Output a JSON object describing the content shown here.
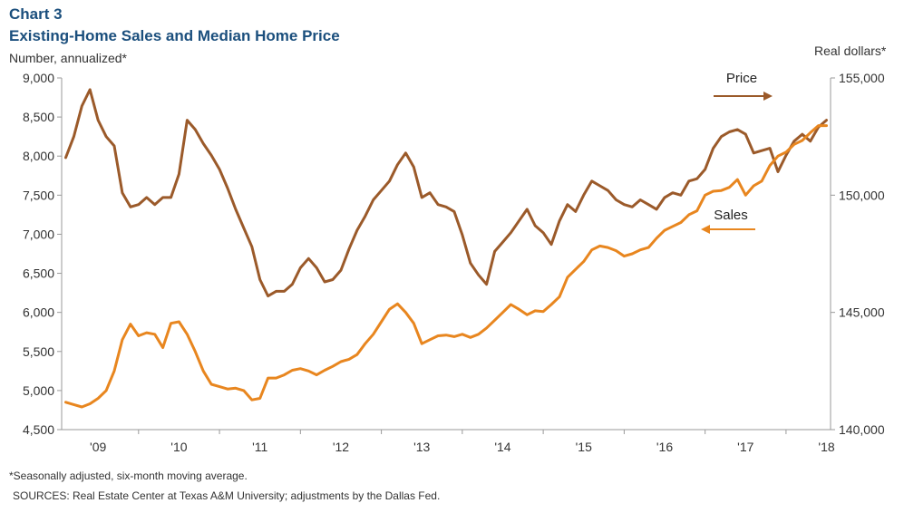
{
  "header": {
    "chart_number": "Chart 3",
    "title": "Existing-Home Sales and Median Home Price",
    "left_unit": "Number, annualized*",
    "right_unit": "Real dollars*"
  },
  "footer": {
    "note": "*Seasonally adjusted, six-month moving average.",
    "source": "SOURCES: Real Estate Center at Texas A&M University; adjustments by the Dallas Fed."
  },
  "colors": {
    "price": "#9b5a2a",
    "sales": "#e8861f",
    "axis": "#999999"
  },
  "chart_data": {
    "type": "line",
    "title": "Existing-Home Sales and Median Home Price",
    "x": [
      2008.6,
      2008.7,
      2008.8,
      2008.9,
      2009.0,
      2009.1,
      2009.2,
      2009.3,
      2009.4,
      2009.5,
      2009.6,
      2009.7,
      2009.8,
      2009.9,
      2010.0,
      2010.1,
      2010.2,
      2010.3,
      2010.4,
      2010.5,
      2010.6,
      2010.7,
      2010.8,
      2010.9,
      2011.0,
      2011.1,
      2011.2,
      2011.3,
      2011.4,
      2011.5,
      2011.6,
      2011.7,
      2011.8,
      2011.9,
      2012.0,
      2012.1,
      2012.2,
      2012.3,
      2012.4,
      2012.5,
      2012.6,
      2012.7,
      2012.8,
      2012.9,
      2013.0,
      2013.1,
      2013.2,
      2013.3,
      2013.4,
      2013.5,
      2013.6,
      2013.7,
      2013.8,
      2013.9,
      2014.0,
      2014.1,
      2014.2,
      2014.3,
      2014.4,
      2014.5,
      2014.6,
      2014.7,
      2014.8,
      2014.9,
      2015.0,
      2015.1,
      2015.2,
      2015.3,
      2015.4,
      2015.5,
      2015.6,
      2015.7,
      2015.8,
      2015.9,
      2016.0,
      2016.1,
      2016.2,
      2016.3,
      2016.4,
      2016.5,
      2016.6,
      2016.7,
      2016.8,
      2016.9,
      2017.0,
      2017.1,
      2017.2,
      2017.3,
      2017.4,
      2017.5,
      2017.6,
      2017.7,
      2017.8,
      2017.9,
      2018.0
    ],
    "xticks": [
      2009,
      2010,
      2011,
      2012,
      2013,
      2014,
      2015,
      2016,
      2017,
      2018
    ],
    "xtick_labels": [
      "'09",
      "'10",
      "'11",
      "'12",
      "'13",
      "'14",
      "'15",
      "'16",
      "'17",
      "'18"
    ],
    "xlim": [
      2008.55,
      2018.05
    ],
    "left_axis": {
      "ylim": [
        4500,
        9000
      ],
      "ticks": [
        4500,
        5000,
        5500,
        6000,
        6500,
        7000,
        7500,
        8000,
        8500,
        9000
      ],
      "tick_labels": [
        "4,500",
        "5,000",
        "5,500",
        "6,000",
        "6,500",
        "7,000",
        "7,500",
        "8,000",
        "8,500",
        "9,000"
      ]
    },
    "right_axis": {
      "ylim": [
        140000,
        155000
      ],
      "ticks": [
        140000,
        145000,
        150000,
        155000
      ],
      "tick_labels": [
        "140,000",
        "145,000",
        "150,000",
        "155,000"
      ]
    },
    "series": [
      {
        "name": "Price",
        "axis": "right",
        "values": [
          151.6,
          152.5,
          153.8,
          154.5,
          153.2,
          152.5,
          152.1,
          150.1,
          149.5,
          149.6,
          149.9,
          149.6,
          149.9,
          149.9,
          150.9,
          153.2,
          152.8,
          152.2,
          151.7,
          151.1,
          150.3,
          149.4,
          148.6,
          147.8,
          146.4,
          145.7,
          145.9,
          145.9,
          146.2,
          146.9,
          147.3,
          146.9,
          146.3,
          146.4,
          146.8,
          147.7,
          148.5,
          149.1,
          149.8,
          150.2,
          150.6,
          151.3,
          151.8,
          151.2,
          149.9,
          150.1,
          149.6,
          149.5,
          149.3,
          148.3,
          147.1,
          146.6,
          146.2,
          147.6,
          148.0,
          148.4,
          148.9,
          149.4,
          148.7,
          148.4,
          147.9,
          148.9,
          149.6,
          149.3,
          150.0,
          150.6,
          150.4,
          150.2,
          149.8,
          149.6,
          149.5,
          149.8,
          149.6,
          149.4,
          149.9,
          150.1,
          150.0,
          150.6,
          150.7,
          151.1,
          152.0,
          152.5,
          152.7,
          152.8,
          152.6,
          151.8,
          151.9,
          152.0,
          151.0,
          151.7,
          152.3,
          152.6,
          152.3,
          152.9,
          153.2
        ]
      },
      {
        "name": "Sales",
        "axis": "left",
        "values": [
          4850,
          4820,
          4790,
          4830,
          4900,
          5000,
          5250,
          5650,
          5850,
          5700,
          5740,
          5720,
          5550,
          5860,
          5880,
          5720,
          5500,
          5250,
          5080,
          5050,
          5020,
          5030,
          5000,
          4880,
          4900,
          5160,
          5160,
          5200,
          5260,
          5280,
          5250,
          5200,
          5260,
          5310,
          5370,
          5400,
          5460,
          5600,
          5720,
          5880,
          6040,
          6110,
          6000,
          5860,
          5600,
          5650,
          5700,
          5710,
          5690,
          5720,
          5680,
          5720,
          5800,
          5900,
          6000,
          6100,
          6040,
          5970,
          6020,
          6010,
          6100,
          6200,
          6450,
          6550,
          6650,
          6800,
          6850,
          6830,
          6790,
          6720,
          6750,
          6800,
          6830,
          6950,
          7050,
          7100,
          7150,
          7250,
          7300,
          7500,
          7550,
          7560,
          7600,
          7700,
          7500,
          7620,
          7680,
          7880,
          8000,
          8050,
          8150,
          8200,
          8300,
          8390,
          8390
        ]
      }
    ],
    "annotations": [
      {
        "text": "Price",
        "arrow": "right"
      },
      {
        "text": "Sales",
        "arrow": "left"
      }
    ]
  }
}
